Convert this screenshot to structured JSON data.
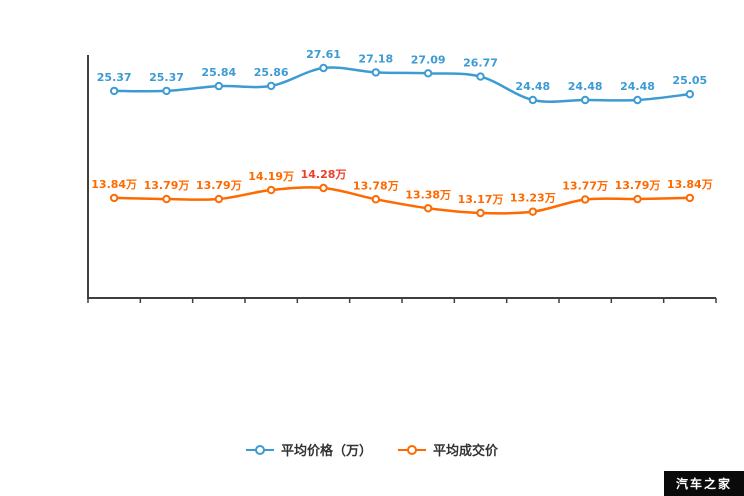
{
  "chart_data": {
    "type": "line",
    "title": "",
    "xlabel": "",
    "ylabel": "",
    "x_tick_labels": [],
    "y_ticks_visible": false,
    "grid": false,
    "legend_position": "bottom",
    "axis_color": "#3f3f3f",
    "series": [
      {
        "name": "平均价格（万）",
        "color": "#3d9bd4",
        "values": [
          25.37,
          25.37,
          25.84,
          25.86,
          27.61,
          27.18,
          27.09,
          26.77,
          24.48,
          24.48,
          24.48,
          25.05
        ],
        "labels": [
          "25.37",
          "25.37",
          "25.84",
          "25.86",
          "27.61",
          "27.18",
          "27.09",
          "26.77",
          "24.48",
          "24.48",
          "24.48",
          "25.05"
        ]
      },
      {
        "name": "平均成交价",
        "color": "#ff6a00",
        "values": [
          13.84,
          13.79,
          13.79,
          14.19,
          14.28,
          13.78,
          13.38,
          13.17,
          13.23,
          13.77,
          13.79,
          13.84
        ],
        "labels": [
          "13.84万",
          "13.79万",
          "13.79万",
          "14.19万",
          "14.28万",
          "13.78万",
          "13.38万",
          "13.17万",
          "13.23万",
          "13.77万",
          "13.79万",
          "13.84万"
        ],
        "peak_index": 4,
        "peak_label_color": "#ef3e2b"
      }
    ]
  },
  "watermark": {
    "text": "汽车之家",
    "bg": "#0a0a0a",
    "fg": "#ffffff"
  }
}
